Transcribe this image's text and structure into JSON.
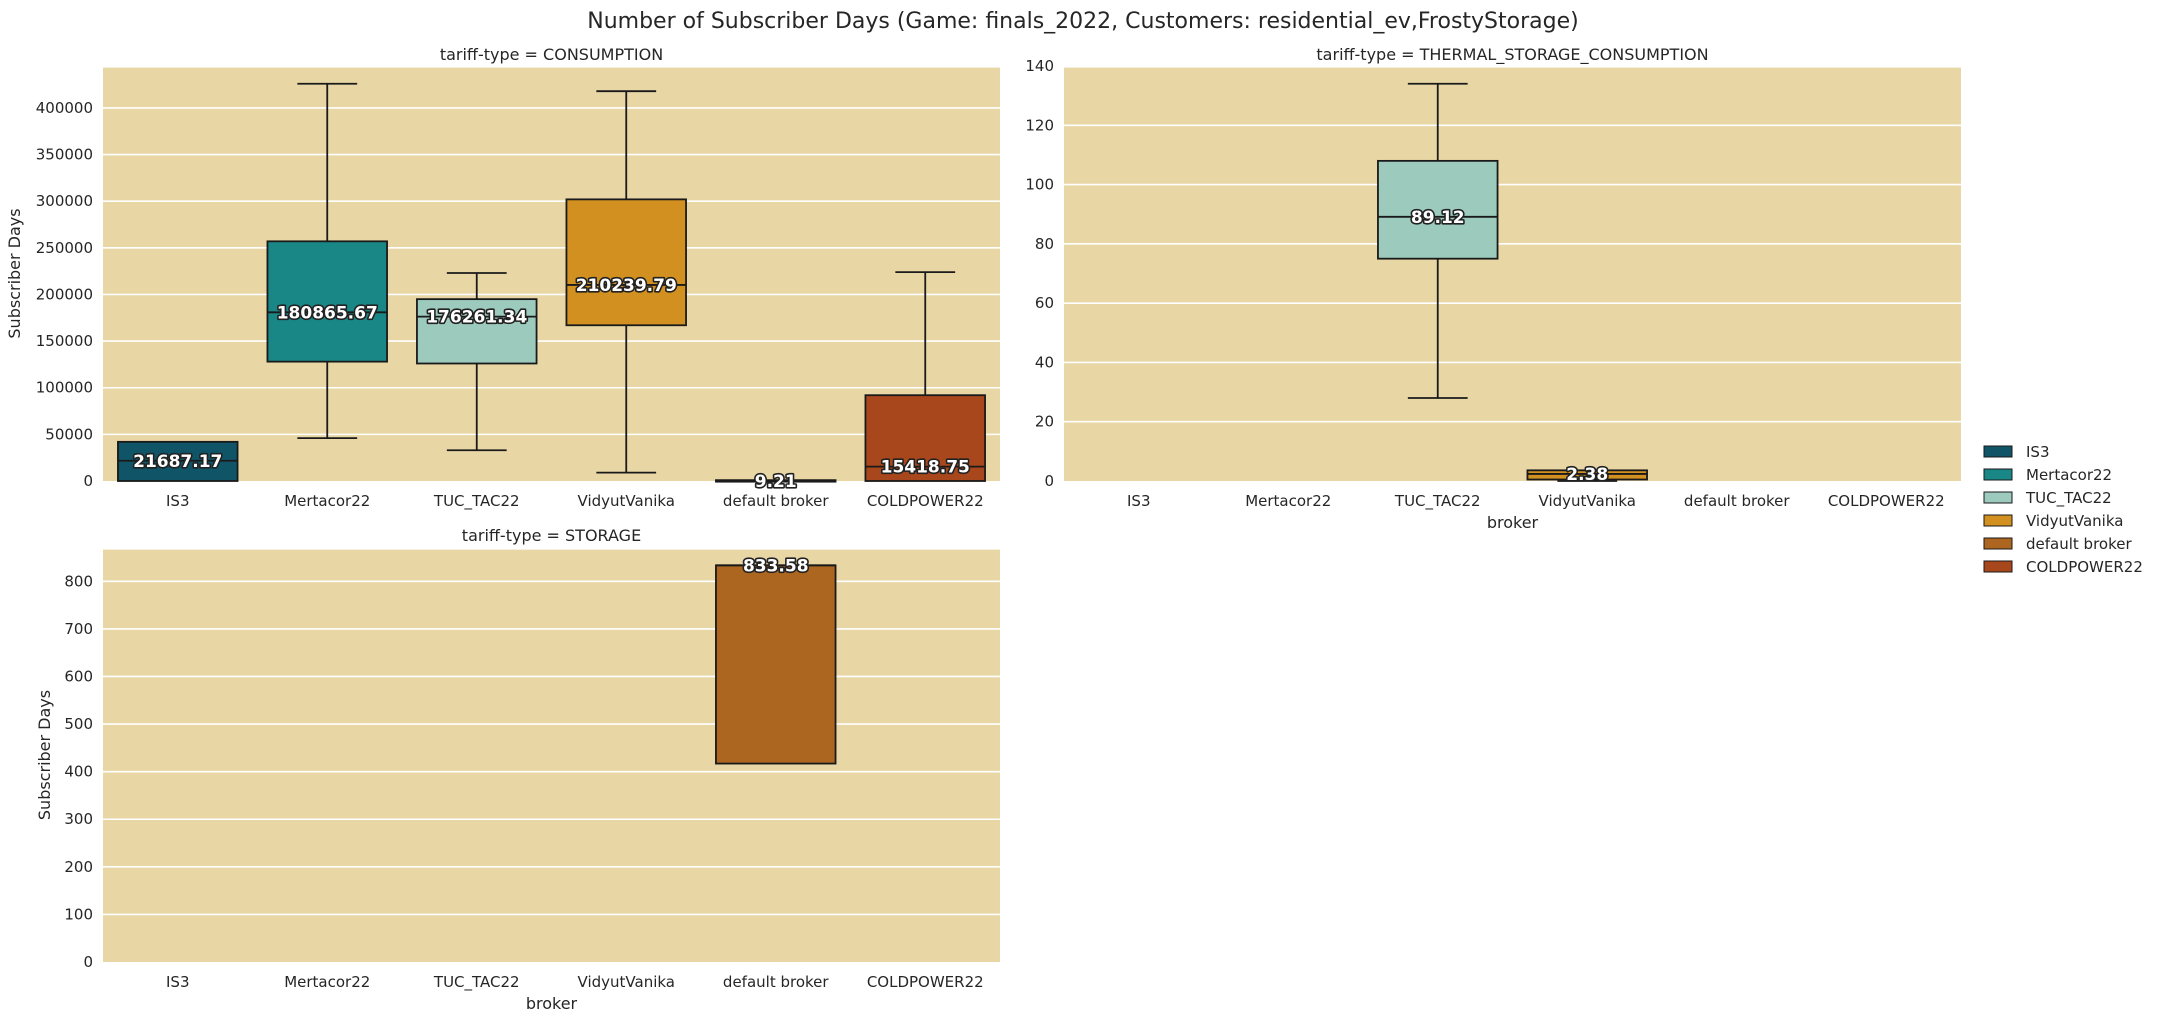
{
  "chart_data": {
    "type": "box",
    "title": "Number of Subscriber Days (Game: finals_2022, Customers: residential_ev,FrostyStorage)",
    "categories": [
      "IS3",
      "Mertacor22",
      "TUC_TAC22",
      "VidyutVanika",
      "default broker",
      "COLDPOWER22"
    ],
    "colors": [
      "#0f5467",
      "#1a8787",
      "#9ccbbd",
      "#d1901f",
      "#ad661f",
      "#a9471c"
    ],
    "legend": {
      "position": "right",
      "entries": [
        "IS3",
        "Mertacor22",
        "TUC_TAC22",
        "VidyutVanika",
        "default broker",
        "COLDPOWER22"
      ]
    },
    "panels": [
      {
        "title": "tariff-type = CONSUMPTION",
        "xlabel": "",
        "ylabel": "Subscriber Days",
        "ylim": [
          0,
          445000
        ],
        "yticks": [
          0,
          50000,
          100000,
          150000,
          200000,
          250000,
          300000,
          350000,
          400000
        ],
        "ytick_labels": [
          "0",
          "50000",
          "100000",
          "150000",
          "200000",
          "250000",
          "300000",
          "350000",
          "400000"
        ],
        "grid": true,
        "boxes": [
          {
            "category": "IS3",
            "whisker_low": 0,
            "q1": 0,
            "median": 21687.17,
            "q3": 42000,
            "whisker_high": 42000,
            "label": "21687.17"
          },
          {
            "category": "Mertacor22",
            "whisker_low": 46000,
            "q1": 128000,
            "median": 180865.67,
            "q3": 257000,
            "whisker_high": 426000,
            "label": "180865.67"
          },
          {
            "category": "TUC_TAC22",
            "whisker_low": 33000,
            "q1": 126000,
            "median": 176261.34,
            "q3": 195000,
            "whisker_high": 223000,
            "label": "176261.34"
          },
          {
            "category": "VidyutVanika",
            "whisker_low": 9000,
            "q1": 167000,
            "median": 210239.79,
            "q3": 302000,
            "whisker_high": 418000,
            "label": "210239.79"
          },
          {
            "category": "default broker",
            "whisker_low": 0,
            "q1": 0,
            "median": 9.21,
            "q3": 900,
            "whisker_high": 900,
            "label": "9.21"
          },
          {
            "category": "COLDPOWER22",
            "whisker_low": 0,
            "q1": 0,
            "median": 15418.75,
            "q3": 92000,
            "whisker_high": 224000,
            "label": "15418.75"
          }
        ]
      },
      {
        "title": "tariff-type = THERMAL_STORAGE_CONSUMPTION",
        "xlabel": "broker",
        "ylabel": "",
        "ylim": [
          0,
          140
        ],
        "yticks": [
          0,
          20,
          40,
          60,
          80,
          100,
          120,
          140
        ],
        "ytick_labels": [
          "0",
          "20",
          "40",
          "60",
          "80",
          "100",
          "120",
          "140"
        ],
        "grid": true,
        "boxes": [
          {
            "category": "TUC_TAC22",
            "whisker_low": 28,
            "q1": 75,
            "median": 89.12,
            "q3": 108,
            "whisker_high": 134,
            "label": "89.12"
          },
          {
            "category": "VidyutVanika",
            "whisker_low": 0,
            "q1": 0.5,
            "median": 2.38,
            "q3": 3.6,
            "whisker_high": 3.6,
            "label": "2.38"
          }
        ]
      },
      {
        "title": "tariff-type = STORAGE",
        "xlabel": "broker",
        "ylabel": "Subscriber Days",
        "ylim": [
          0,
          870
        ],
        "yticks": [
          0,
          100,
          200,
          300,
          400,
          500,
          600,
          700,
          800
        ],
        "ytick_labels": [
          "0",
          "100",
          "200",
          "300",
          "400",
          "500",
          "600",
          "700",
          "800"
        ],
        "grid": true,
        "boxes": [
          {
            "category": "default broker",
            "whisker_low": 417,
            "q1": 417,
            "median": 833.58,
            "q3": 833.58,
            "whisker_high": 833.58,
            "label": "833.58"
          }
        ]
      }
    ]
  }
}
